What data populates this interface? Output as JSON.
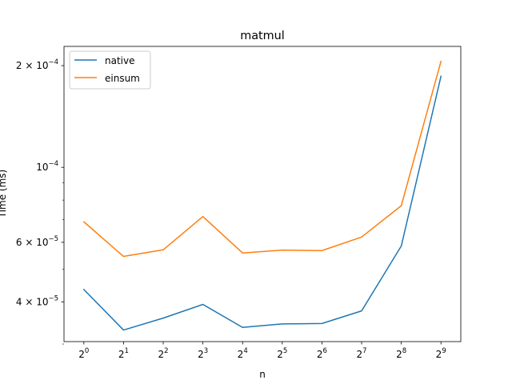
{
  "chart_data": {
    "type": "line",
    "title": "matmul",
    "xlabel": "n",
    "ylabel": "Time (ms)",
    "x_scale": "log2",
    "y_scale": "log",
    "x": [
      1,
      2,
      4,
      8,
      16,
      32,
      64,
      128,
      256,
      512
    ],
    "xtick_labels": [
      {
        "base": "2",
        "exp": "0"
      },
      {
        "base": "2",
        "exp": "1"
      },
      {
        "base": "2",
        "exp": "2"
      },
      {
        "base": "2",
        "exp": "3"
      },
      {
        "base": "2",
        "exp": "4"
      },
      {
        "base": "2",
        "exp": "5"
      },
      {
        "base": "2",
        "exp": "6"
      },
      {
        "base": "2",
        "exp": "7"
      },
      {
        "base": "2",
        "exp": "8"
      },
      {
        "base": "2",
        "exp": "9"
      }
    ],
    "yticks": [
      {
        "value": 4e-05,
        "mant": "4 × 10",
        "exp": "−5"
      },
      {
        "value": 6e-05,
        "mant": "6 × 10",
        "exp": "−5"
      },
      {
        "value": 0.0001,
        "mant": "10",
        "exp": "−4"
      },
      {
        "value": 0.0002,
        "mant": "2 × 10",
        "exp": "−4"
      }
    ],
    "ylim": [
      3.05e-05,
      0.000228
    ],
    "xlim": [
      0.707,
      724
    ],
    "legend_position": "upper-left",
    "series": [
      {
        "name": "native",
        "color": "#1f77b4",
        "values": [
          4.35e-05,
          3.3e-05,
          3.58e-05,
          3.93e-05,
          3.36e-05,
          3.44e-05,
          3.45e-05,
          3.76e-05,
          5.85e-05,
          0.000186
        ]
      },
      {
        "name": "einsum",
        "color": "#ff7f0e",
        "values": [
          6.9e-05,
          5.45e-05,
          5.7e-05,
          7.15e-05,
          5.58e-05,
          5.69e-05,
          5.67e-05,
          6.22e-05,
          7.7e-05,
          0.000206
        ]
      }
    ]
  }
}
